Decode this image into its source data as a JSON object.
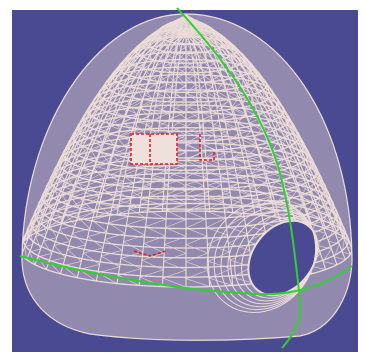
{
  "viewport": {
    "background_color": "#4a4a92",
    "frame_color": "#ffffff",
    "mesh_stroke_color": "#ecdcd8",
    "mesh_fill_color": "#e8d6d3",
    "opening_color": "#4a4a92",
    "curve_color": "#2fd12f",
    "marker_color": "#e02020",
    "marker_fill_color": "#efe0dc"
  },
  "scene": {
    "object": "wireframe-dome-mesh",
    "curves": [
      "vertical-curve",
      "horizontal-curve"
    ],
    "markers": [
      "square-marker",
      "bracket-marker",
      "dash-marker"
    ]
  }
}
